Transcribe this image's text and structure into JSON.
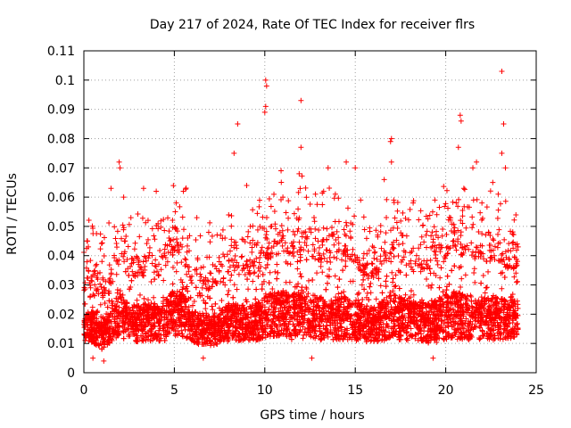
{
  "chart_data": {
    "type": "scatter",
    "title": "Day 217 of 2024, Rate Of TEC Index for receiver flrs",
    "xlabel": "GPS time / hours",
    "ylabel": "ROTI / TECUs",
    "xlim": [
      0,
      25
    ],
    "ylim": [
      0,
      0.11
    ],
    "x_ticks": [
      0,
      5,
      10,
      15,
      20,
      25
    ],
    "x_tick_labels": [
      "0",
      "5",
      "10",
      "15",
      "20",
      "25"
    ],
    "y_ticks": [
      0,
      0.01,
      0.02,
      0.03,
      0.04,
      0.05,
      0.06,
      0.07,
      0.08,
      0.09,
      0.1,
      0.11
    ],
    "y_tick_labels": [
      "0",
      "0.01",
      "0.02",
      "0.03",
      "0.04",
      "0.05",
      "0.06",
      "0.07",
      "0.08",
      "0.09",
      "0.1",
      "0.11"
    ],
    "grid": true,
    "marker": "+",
    "series": [
      {
        "name": "ROTI",
        "color": "#ff0000",
        "notable_points": [
          [
            10.05,
            0.1
          ],
          [
            10.1,
            0.098
          ],
          [
            10.05,
            0.091
          ],
          [
            10.0,
            0.089
          ],
          [
            12.0,
            0.093
          ],
          [
            23.1,
            0.103
          ],
          [
            23.2,
            0.085
          ],
          [
            8.5,
            0.085
          ],
          [
            20.8,
            0.088
          ],
          [
            20.85,
            0.086
          ],
          [
            17.0,
            0.08
          ],
          [
            16.95,
            0.079
          ],
          [
            12.0,
            0.077
          ],
          [
            20.7,
            0.077
          ],
          [
            8.3,
            0.075
          ],
          [
            23.1,
            0.075
          ],
          [
            1.95,
            0.072
          ],
          [
            2.0,
            0.07
          ],
          [
            14.5,
            0.072
          ],
          [
            13.5,
            0.07
          ],
          [
            15.0,
            0.07
          ],
          [
            21.5,
            0.07
          ],
          [
            21.7,
            0.072
          ],
          [
            17.0,
            0.072
          ],
          [
            10.9,
            0.069
          ],
          [
            11.9,
            0.068
          ],
          [
            23.3,
            0.07
          ],
          [
            22.6,
            0.065
          ],
          [
            5.5,
            0.062
          ],
          [
            3.3,
            0.063
          ],
          [
            4.0,
            0.062
          ],
          [
            9.0,
            0.064
          ],
          [
            1.5,
            0.063
          ],
          [
            0.2,
            0.045
          ],
          [
            0.25,
            0.043
          ],
          [
            1.0,
            0.038
          ],
          [
            0.7,
            0.037
          ],
          [
            24.0,
            0.043
          ],
          [
            23.95,
            0.044
          ],
          [
            2.6,
            0.053
          ],
          [
            2.2,
            0.06
          ],
          [
            5.1,
            0.058
          ],
          [
            6.9,
            0.048
          ],
          [
            7.8,
            0.046
          ],
          [
            9.2,
            0.05
          ],
          [
            11.0,
            0.06
          ],
          [
            12.8,
            0.061
          ],
          [
            13.9,
            0.061
          ],
          [
            15.3,
            0.059
          ],
          [
            16.6,
            0.066
          ],
          [
            18.2,
            0.058
          ],
          [
            19.4,
            0.059
          ],
          [
            21.0,
            0.063
          ],
          [
            22.0,
            0.058
          ],
          [
            22.9,
            0.061
          ],
          [
            0.5,
            0.005
          ],
          [
            1.1,
            0.004
          ],
          [
            6.6,
            0.005
          ],
          [
            12.6,
            0.005
          ],
          [
            19.3,
            0.005
          ]
        ],
        "band_profile": {
          "hours": [
            0,
            0.5,
            1,
            1.5,
            2,
            2.5,
            3,
            3.5,
            4,
            4.5,
            5,
            5.5,
            6,
            6.5,
            7,
            7.5,
            8,
            8.5,
            9,
            9.5,
            10,
            10.5,
            11,
            11.5,
            12,
            12.5,
            13,
            13.5,
            14,
            14.5,
            15,
            15.5,
            16,
            16.5,
            17,
            17.5,
            18,
            18.5,
            19,
            19.5,
            20,
            20.5,
            21,
            21.5,
            22,
            22.5,
            23,
            23.5,
            24
          ],
          "low": [
            0.009,
            0.008,
            0.006,
            0.008,
            0.009,
            0.008,
            0.008,
            0.008,
            0.008,
            0.008,
            0.009,
            0.009,
            0.008,
            0.007,
            0.007,
            0.007,
            0.008,
            0.008,
            0.008,
            0.008,
            0.009,
            0.009,
            0.009,
            0.008,
            0.008,
            0.008,
            0.008,
            0.008,
            0.008,
            0.008,
            0.008,
            0.008,
            0.008,
            0.008,
            0.008,
            0.008,
            0.008,
            0.008,
            0.007,
            0.007,
            0.008,
            0.008,
            0.008,
            0.008,
            0.008,
            0.008,
            0.008,
            0.009,
            0.009
          ],
          "high": [
            0.028,
            0.03,
            0.025,
            0.032,
            0.038,
            0.035,
            0.033,
            0.035,
            0.034,
            0.036,
            0.042,
            0.04,
            0.03,
            0.029,
            0.028,
            0.03,
            0.035,
            0.034,
            0.033,
            0.034,
            0.038,
            0.04,
            0.041,
            0.04,
            0.042,
            0.04,
            0.038,
            0.037,
            0.039,
            0.038,
            0.036,
            0.033,
            0.032,
            0.036,
            0.04,
            0.038,
            0.036,
            0.036,
            0.035,
            0.037,
            0.04,
            0.041,
            0.04,
            0.039,
            0.038,
            0.038,
            0.038,
            0.036,
            0.035
          ]
        }
      }
    ]
  }
}
